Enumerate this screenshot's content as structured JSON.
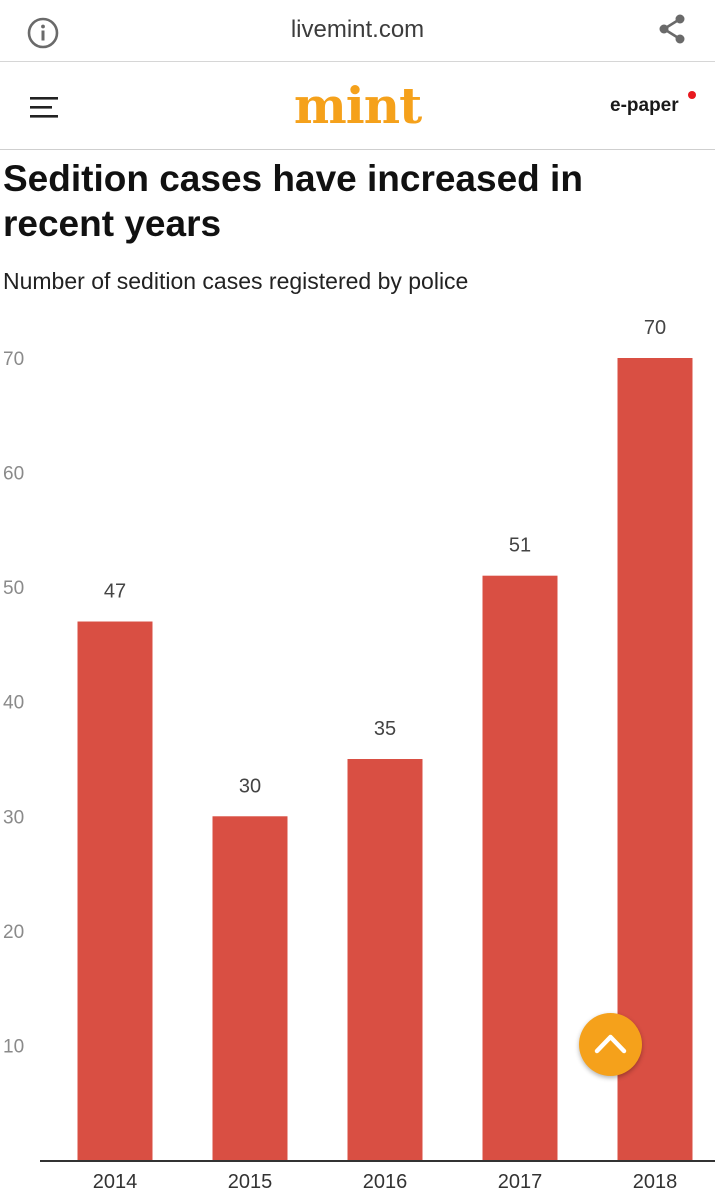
{
  "browser": {
    "url": "livemint.com",
    "info_icon": "info-icon",
    "share_icon": "share-icon"
  },
  "header": {
    "menu_icon": "hamburger-menu-icon",
    "logo_text": "mint",
    "epaper_label": "e-paper"
  },
  "colors": {
    "bar": "#d94f43",
    "brand": "#f5a11b",
    "epaper_dot": "#e8191f",
    "axis": "#333333"
  },
  "scroll_top": {
    "icon": "chevron-up-icon"
  },
  "chart_data": {
    "type": "bar",
    "title": "Sedition cases have increased in recent years",
    "subtitle": "Number of sedition cases registered by police",
    "categories": [
      "2014",
      "2015",
      "2016",
      "2017",
      "2018"
    ],
    "values": [
      47,
      30,
      35,
      51,
      70
    ],
    "xlabel": "",
    "ylabel": "",
    "ylim": [
      0,
      70
    ],
    "yticks": [
      10,
      20,
      30,
      40,
      50,
      60,
      70
    ],
    "grid": false,
    "legend": "none"
  }
}
